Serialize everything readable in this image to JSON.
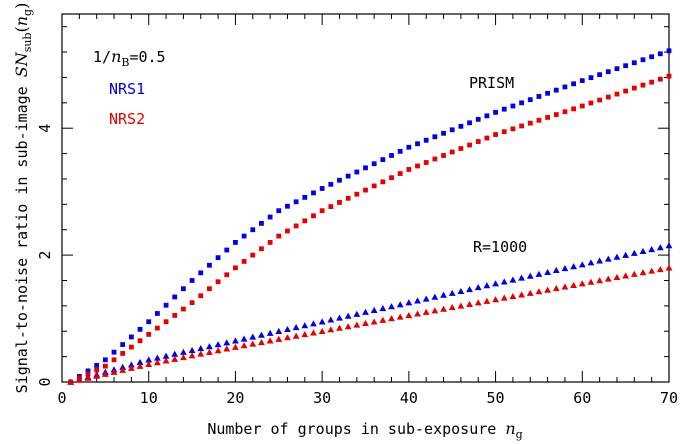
{
  "chart_data": {
    "type": "scatter",
    "xlabel": "Number of groups in sub-exposure n_g",
    "ylabel": "Signal-to-noise ratio in sub-image SN_sub(n_g)",
    "xlim": [
      0,
      70
    ],
    "ylim": [
      0,
      5.8
    ],
    "x_ticks": [
      0,
      10,
      20,
      30,
      40,
      50,
      60,
      70
    ],
    "y_ticks": [
      0,
      2,
      4
    ],
    "grid": false,
    "annotations": {
      "param": "1/n_B=0.5",
      "prism": "PRISM",
      "r1000": "R=1000"
    },
    "legend_entries": [
      {
        "label": "NRS1",
        "color": "#0000e6"
      },
      {
        "label": "NRS2",
        "color": "#e60000"
      }
    ],
    "x_range": {
      "start": 1,
      "end": 70,
      "step": 1
    },
    "series": [
      {
        "name": "NRS1",
        "group": "PRISM",
        "marker": "square",
        "color": "#0000e6",
        "anchors": [
          [
            1,
            0.0
          ],
          [
            5,
            0.35
          ],
          [
            10,
            0.95
          ],
          [
            15,
            1.6
          ],
          [
            20,
            2.2
          ],
          [
            25,
            2.7
          ],
          [
            30,
            3.05
          ],
          [
            40,
            3.7
          ],
          [
            50,
            4.25
          ],
          [
            60,
            4.75
          ],
          [
            70,
            5.22
          ]
        ]
      },
      {
        "name": "NRS2",
        "group": "PRISM",
        "marker": "square",
        "color": "#e60000",
        "anchors": [
          [
            1,
            0.0
          ],
          [
            5,
            0.25
          ],
          [
            10,
            0.75
          ],
          [
            15,
            1.25
          ],
          [
            20,
            1.8
          ],
          [
            25,
            2.3
          ],
          [
            30,
            2.7
          ],
          [
            40,
            3.35
          ],
          [
            50,
            3.9
          ],
          [
            60,
            4.35
          ],
          [
            70,
            4.82
          ]
        ]
      },
      {
        "name": "NRS1",
        "group": "R=1000",
        "marker": "triangle",
        "color": "#0000e6",
        "anchors": [
          [
            1,
            0.0
          ],
          [
            10,
            0.35
          ],
          [
            20,
            0.65
          ],
          [
            30,
            0.95
          ],
          [
            40,
            1.25
          ],
          [
            50,
            1.55
          ],
          [
            60,
            1.85
          ],
          [
            70,
            2.15
          ]
        ]
      },
      {
        "name": "NRS2",
        "group": "R=1000",
        "marker": "triangle",
        "color": "#e60000",
        "anchors": [
          [
            1,
            0.0
          ],
          [
            10,
            0.28
          ],
          [
            20,
            0.55
          ],
          [
            30,
            0.8
          ],
          [
            40,
            1.05
          ],
          [
            50,
            1.3
          ],
          [
            60,
            1.55
          ],
          [
            70,
            1.8
          ]
        ]
      }
    ]
  }
}
